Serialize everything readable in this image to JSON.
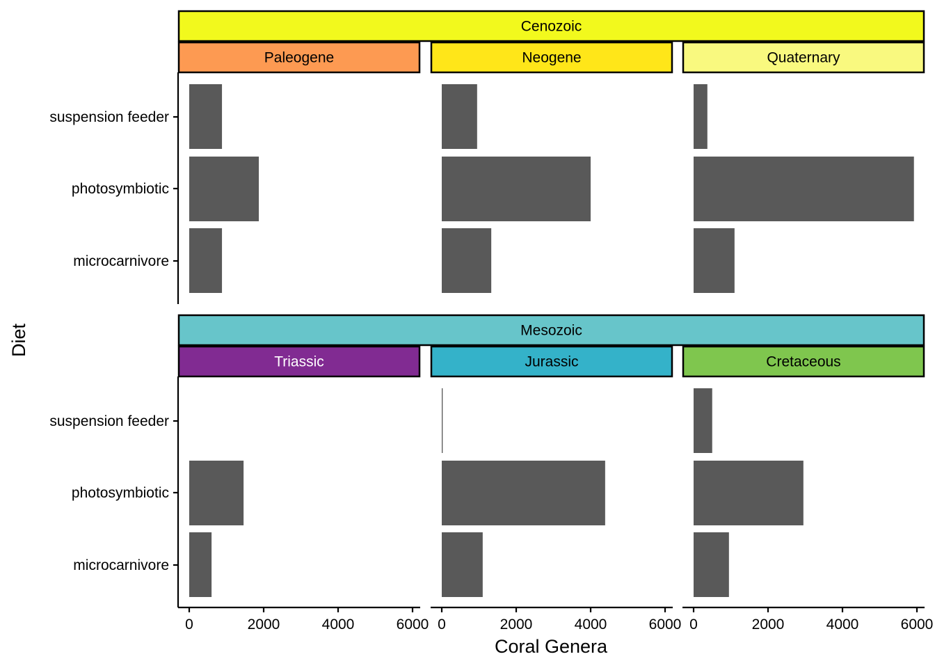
{
  "chart_data": {
    "type": "bar",
    "orientation": "horizontal",
    "title": "",
    "xlabel": "Coral Genera",
    "ylabel": "Diet",
    "xlim": [
      0,
      6000
    ],
    "x_ticks": [
      0,
      2000,
      4000,
      6000
    ],
    "x_tick_labels": [
      "0",
      "2000",
      "4000",
      "6000"
    ],
    "categories": [
      "suspension feeder",
      "photosymbiotic",
      "microcarnivore"
    ],
    "bar_color": "#595959",
    "grid": false,
    "legend": "none",
    "facet_rows": [
      {
        "era": "Cenozoic",
        "era_color": "#F2F91D",
        "era_text_color": "#000000",
        "panels": [
          {
            "period": "Paleogene",
            "color": "#FD9A52",
            "text_color": "#000000",
            "values": [
              880,
              1870,
              880
            ]
          },
          {
            "period": "Neogene",
            "color": "#FFE619",
            "text_color": "#000000",
            "values": [
              950,
              4000,
              1330
            ]
          },
          {
            "period": "Quaternary",
            "color": "#F9F97F",
            "text_color": "#000000",
            "values": [
              370,
              5920,
              1100
            ]
          }
        ]
      },
      {
        "era": "Mesozoic",
        "era_color": "#67C5CA",
        "era_text_color": "#000000",
        "panels": [
          {
            "period": "Triassic",
            "color": "#812B92",
            "text_color": "#FFFFFF",
            "values": [
              0,
              1460,
              600
            ]
          },
          {
            "period": "Jurassic",
            "color": "#34B2C9",
            "text_color": "#000000",
            "values": [
              25,
              4390,
              1100
            ]
          },
          {
            "period": "Cretaceous",
            "color": "#7FC64E",
            "text_color": "#000000",
            "values": [
              500,
              2950,
              950
            ]
          }
        ]
      }
    ]
  }
}
